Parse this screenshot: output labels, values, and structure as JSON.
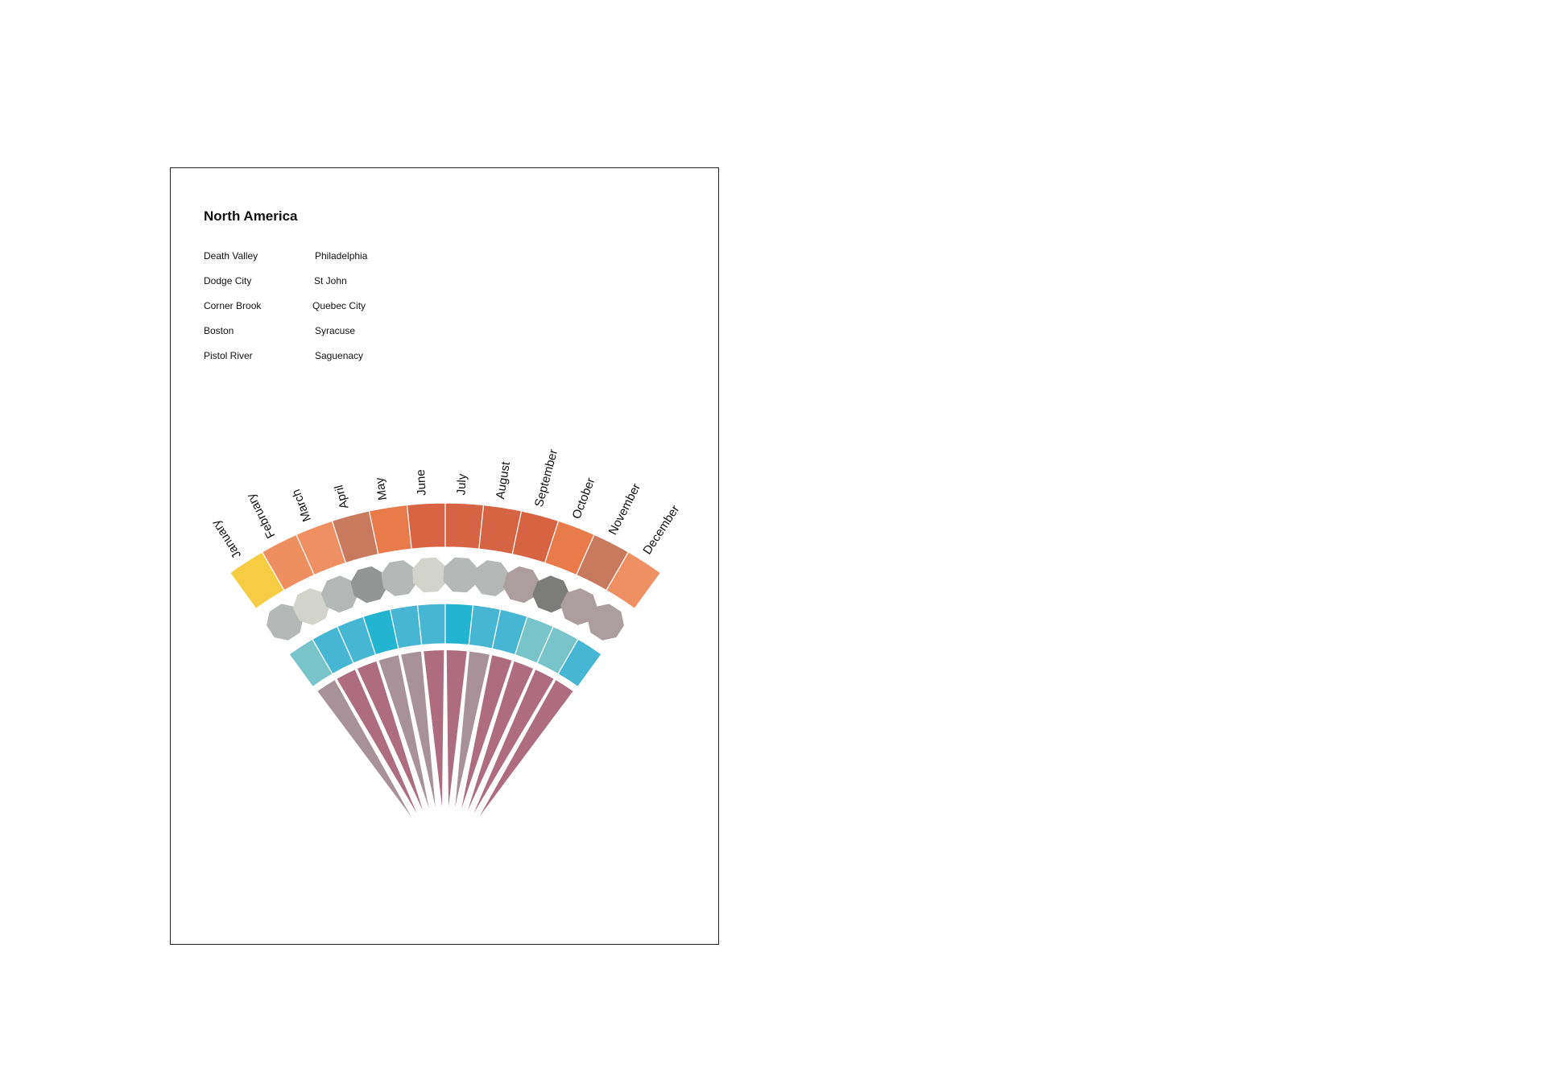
{
  "title": "North America",
  "cities": {
    "left": [
      "Death Valley",
      "Dodge City",
      "Corner Brook",
      "Boston",
      "Pistol River"
    ],
    "right": [
      "Philadelphia",
      "St John",
      "Quebec City",
      "Syracuse",
      "Saguenacy"
    ]
  },
  "months": [
    "January",
    "February",
    "March",
    "April",
    "May",
    "June",
    "July",
    "August",
    "September",
    "October",
    "November",
    "December"
  ],
  "colors": {
    "outer_ring": [
      "#F6CC43",
      "#EE8F60",
      "#EE9062",
      "#C97A5E",
      "#E87B49",
      "#D96343",
      "#D66343",
      "#D66343",
      "#D86342",
      "#E87B49",
      "#C97A5E",
      "#EE9062"
    ],
    "octagons": [
      "#B4B9B7",
      "#D2D4CB",
      "#B4B9B7",
      "#929593",
      "#B4B9B7",
      "#D2D4CB",
      "#B4B9B7",
      "#B4B9B7",
      "#AC9E9E",
      "#7C7D7B",
      "#AC9E9E",
      "#AC9E9E"
    ],
    "blue_ring": [
      "#78C4CB",
      "#46B6D2",
      "#46B6D2",
      "#22B4D1",
      "#46B6D2",
      "#46B6D2",
      "#22B4D1",
      "#46B6D2",
      "#46B6D2",
      "#78C4CB",
      "#78C4CB",
      "#46B6D2"
    ],
    "wedges": [
      "#A8929A",
      "#AD6C80",
      "#AD6C80",
      "#A8929A",
      "#A8929A",
      "#AD6C80",
      "#AD6C80",
      "#A8929A",
      "#AD6C80",
      "#AD6C80",
      "#AD6C80",
      "#AD6C80"
    ]
  }
}
